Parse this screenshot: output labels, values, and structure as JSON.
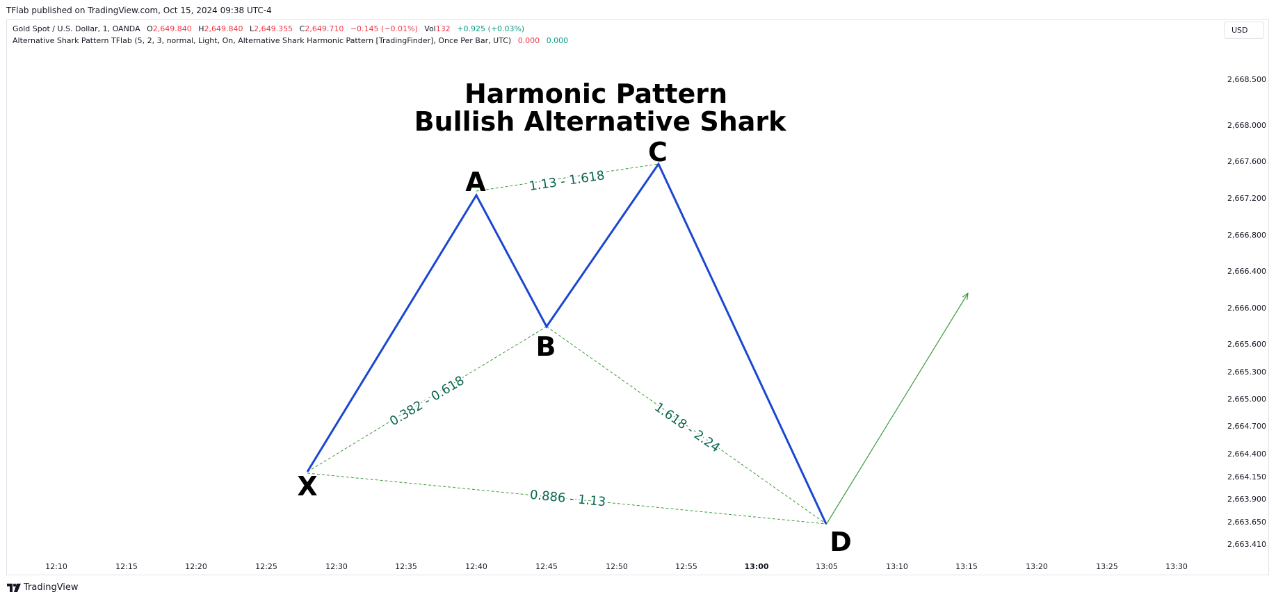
{
  "header": {
    "published": "TFlab published on TradingView.com, Oct 15, 2024 09:38 UTC-4"
  },
  "legend": {
    "symbol": "Gold Spot / U.S. Dollar, 1, OANDA",
    "o_label": "O",
    "o_value": "2,649.840",
    "h_label": "H",
    "h_value": "2,649.840",
    "l_label": "L",
    "l_value": "2,649.355",
    "c_label": "C",
    "c_value": "2,649.710",
    "change": "−0.145 (−0.01%)",
    "vol_label": "Vol",
    "vol_value": "132",
    "vol_change": "+0.925 (+0.03%)",
    "indicator": "Alternative Shark Pattern TFlab (5, 2, 3, normal, Light, On, Alternative Shark Harmonic Pattern [TradingFinder], Once Per Bar, UTC)",
    "ind_val1": "0.000",
    "ind_val2": "0.000"
  },
  "currency_button": "USD",
  "title_line1": "Harmonic Pattern",
  "title_line2": "Bullish Alternative Shark",
  "price_axis": [
    "2,668.500",
    "2,668.000",
    "2,667.600",
    "2,667.200",
    "2,666.800",
    "2,666.400",
    "2,666.000",
    "2,665.600",
    "2,665.300",
    "2,665.000",
    "2,664.700",
    "2,664.400",
    "2,664.150",
    "2,663.900",
    "2,663.650",
    "2,663.410"
  ],
  "time_axis": [
    "12:10",
    "12:15",
    "12:20",
    "12:25",
    "12:30",
    "12:35",
    "12:40",
    "12:45",
    "12:50",
    "12:55",
    "13:00",
    "13:05",
    "13:10",
    "13:15",
    "13:20",
    "13:25",
    "13:30"
  ],
  "pattern_points": {
    "X": {
      "time": "12:27.5",
      "price": 2664.2
    },
    "A": {
      "time": "12:40",
      "price": 2667.23
    },
    "B": {
      "time": "12:45",
      "price": 2665.78
    },
    "C": {
      "time": "12:53",
      "price": 2667.53
    },
    "D": {
      "time": "13:05",
      "price": 2663.67
    }
  },
  "projection_target": {
    "time": "13:15",
    "price": 2666.15
  },
  "point_labels": [
    "X",
    "A",
    "B",
    "C",
    "D"
  ],
  "ratios": {
    "ac": "1.13 - 1.618",
    "xb": "0.382 - 0.618",
    "bd": "1.618 - 2.24",
    "xd": "0.886 - 1.13"
  },
  "colors": {
    "pattern_line": "#1a47d1",
    "ratio_line": "#3a9a3a",
    "ratio_text": "#0a6650",
    "projection": "#3a9a3a",
    "down": "#f23645",
    "up": "#089981"
  },
  "footer": {
    "brand": "TradingView"
  }
}
